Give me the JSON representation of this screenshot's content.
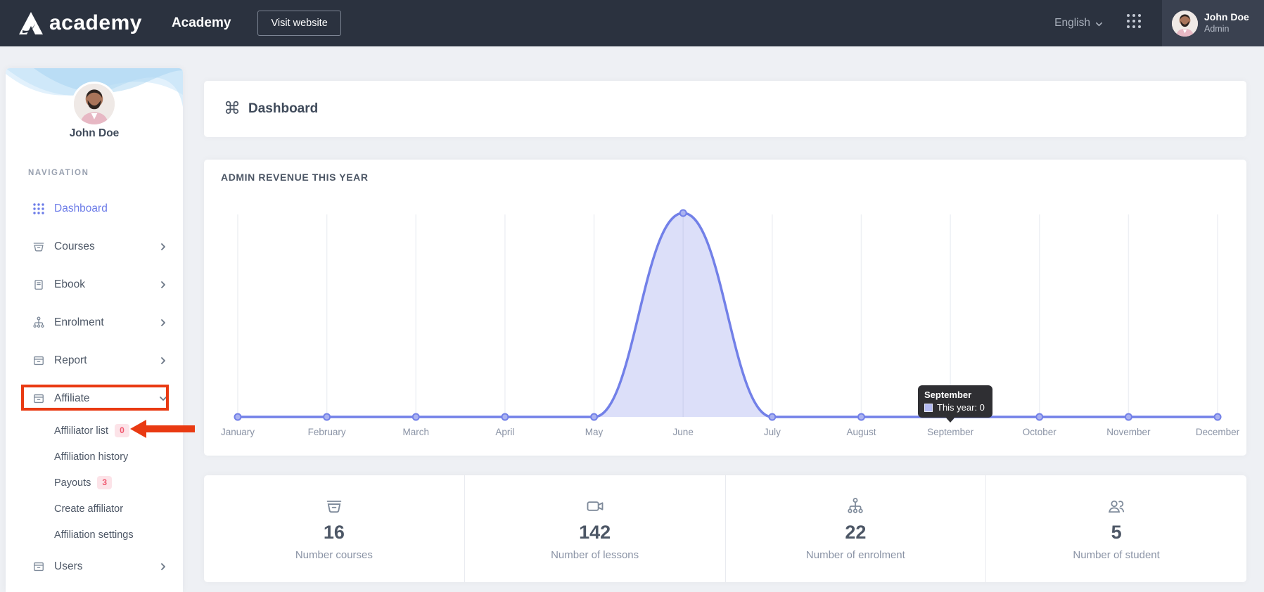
{
  "header": {
    "logo_text": "academy",
    "app_name": "Academy",
    "visit_website_label": "Visit website",
    "language": "English",
    "user": {
      "name": "John Doe",
      "role": "Admin"
    }
  },
  "sidebar": {
    "user_name": "John Doe",
    "section_label": "NAVIGATION",
    "items": [
      {
        "label": "Dashboard",
        "icon": "grid-dots-icon",
        "active": true
      },
      {
        "label": "Courses",
        "icon": "basket-icon",
        "chevron": "right"
      },
      {
        "label": "Ebook",
        "icon": "book-icon",
        "chevron": "right"
      },
      {
        "label": "Enrolment",
        "icon": "sitemap-icon",
        "chevron": "right"
      },
      {
        "label": "Report",
        "icon": "archive-icon",
        "chevron": "right"
      },
      {
        "label": "Affiliate",
        "icon": "archive-icon",
        "chevron": "down",
        "annotated_with_red_box": true
      }
    ],
    "affiliate_children": [
      {
        "label": "Affliliator list",
        "badge": "0",
        "annotated_with_red_arrow": true
      },
      {
        "label": "Affiliation history"
      },
      {
        "label": "Payouts",
        "badge": "3"
      },
      {
        "label": "Create affiliator"
      },
      {
        "label": "Affiliation settings"
      }
    ],
    "items_after": [
      {
        "label": "Users",
        "icon": "archive-icon",
        "chevron": "right"
      }
    ]
  },
  "main": {
    "page_title": "Dashboard",
    "chart_card_title": "ADMIN REVENUE THIS YEAR",
    "tooltip": {
      "title": "September",
      "line": "This year: 0"
    },
    "stats": [
      {
        "icon": "basket-icon",
        "value": "16",
        "label": "Number courses"
      },
      {
        "icon": "video-camera-icon",
        "value": "142",
        "label": "Number of lessons"
      },
      {
        "icon": "sitemap-icon",
        "value": "22",
        "label": "Number of enrolment"
      },
      {
        "icon": "people-icon",
        "value": "5",
        "label": "Number of student"
      }
    ]
  },
  "chart_data": {
    "type": "area",
    "title": "ADMIN REVENUE THIS YEAR",
    "categories": [
      "January",
      "February",
      "March",
      "April",
      "May",
      "June",
      "July",
      "August",
      "September",
      "October",
      "November",
      "December"
    ],
    "series": [
      {
        "name": "This year",
        "values": [
          0,
          0,
          0,
          0,
          0,
          1,
          0,
          0,
          0,
          0,
          0,
          0
        ]
      }
    ],
    "ylim": [
      0,
      1
    ],
    "y_axis_labels_visible": false,
    "grid": "vertical-only",
    "legend_position": "none",
    "tooltip_point": {
      "category": "September",
      "series": "This year",
      "value": 0
    },
    "line_color": "#7280e8",
    "fill_color": "rgba(114,128,232,0.25)"
  },
  "colors": {
    "header_bg": "#2b323f",
    "user_panel_bg": "#3a4150",
    "page_bg": "#eef0f4",
    "card_bg": "#ffffff",
    "accent_indigo": "#6c7ce8",
    "badge_bg": "#fce3e8",
    "badge_text": "#f0566e",
    "annotation_red": "#e93a12",
    "tooltip_bg": "#2f2f33",
    "text_dark": "#3f4a5a",
    "text_muted": "#8a93a5"
  }
}
